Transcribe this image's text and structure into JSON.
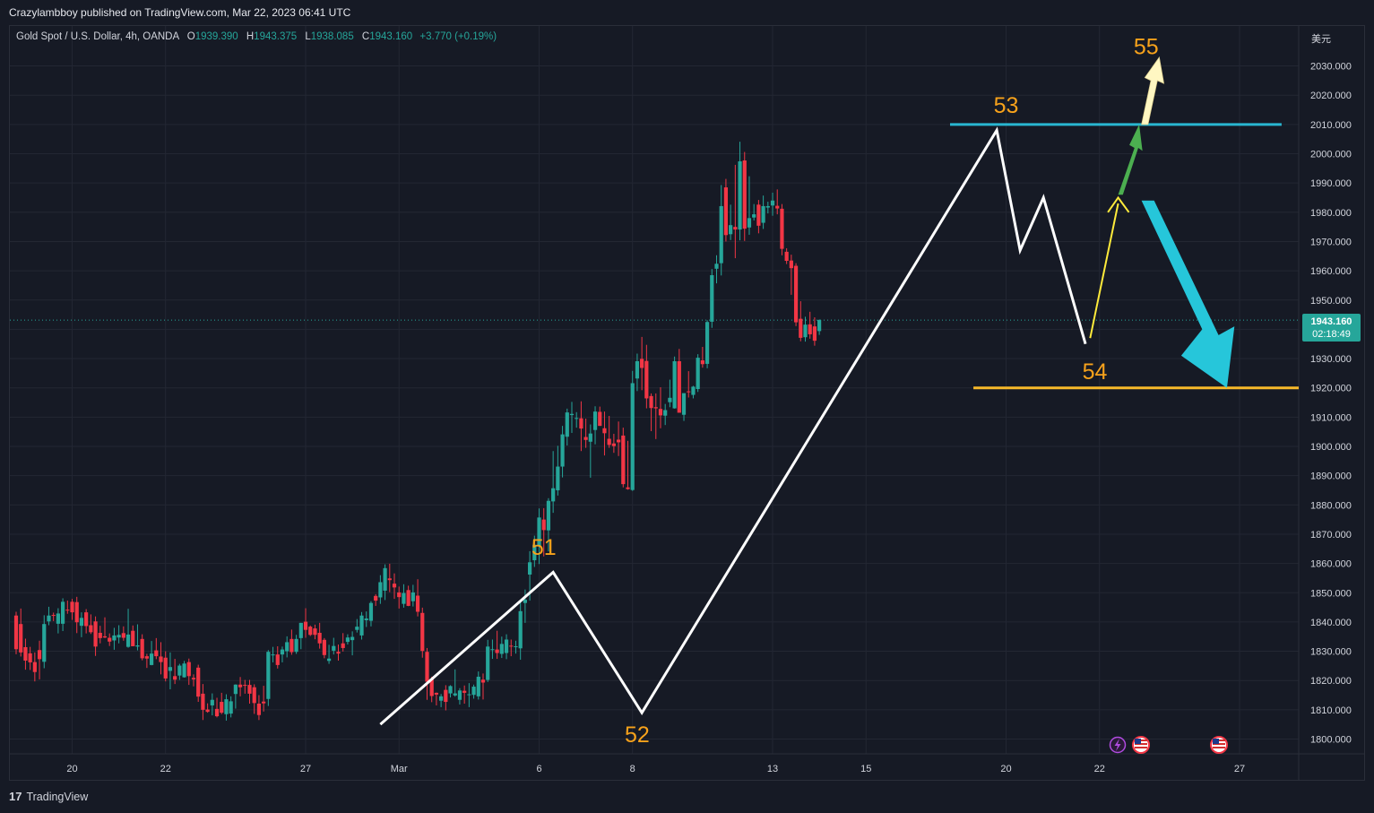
{
  "publisher_line": "Crazylambboy published on TradingView.com, Mar 22, 2023 06:41 UTC",
  "symbol": {
    "name": "Gold Spot / U.S. Dollar, 4h, OANDA",
    "o_label": "O",
    "o_value": "1939.390",
    "h_label": "H",
    "h_value": "1943.375",
    "l_label": "L",
    "l_value": "1938.085",
    "c_label": "C",
    "c_value": "1943.160",
    "change": "+3.770 (+0.19%)"
  },
  "currency": "美元",
  "last_price": {
    "price": "1943.160",
    "countdown": "02:18:49",
    "value": 1943.16
  },
  "footer": {
    "logo": "17",
    "brand": "TradingView"
  },
  "colors": {
    "up": "#26a69a",
    "down": "#f23645",
    "background": "#161a25",
    "grid": "#232733",
    "wave": "#ffffff",
    "label": "#f7a21b",
    "resistance": "#29b6d1",
    "support": "#f7b92a",
    "arrow_yellow": "#ffeb3b",
    "arrow_green": "#4caf50",
    "arrow_cream": "#fff7c2",
    "arrow_cyan": "#26c6da"
  },
  "icons": [
    "lightning-icon",
    "us-flag-icon",
    "us-flag-icon"
  ],
  "chart_data": {
    "type": "candlestick",
    "title": "Gold Spot / U.S. Dollar",
    "timeframe": "4h",
    "ylim": [
      1795,
      2040
    ],
    "y_ticks": [
      1800,
      1810,
      1820,
      1830,
      1840,
      1850,
      1860,
      1870,
      1880,
      1890,
      1900,
      1910,
      1920,
      1930,
      1940,
      1950,
      1960,
      1970,
      1980,
      1990,
      2000,
      2010,
      2020,
      2030
    ],
    "y_tick_labels": [
      "1800.000",
      "1810.000",
      "1820.000",
      "1830.000",
      "1840.000",
      "1850.000",
      "1860.000",
      "1870.000",
      "1880.000",
      "1890.000",
      "1900.000",
      "1910.000",
      "1920.000",
      "1930.000",
      "1940.000",
      "1950.000",
      "1960.000",
      "1970.000",
      "1980.000",
      "1990.000",
      "2000.000",
      "2010.000",
      "2020.000",
      "2030.000"
    ],
    "x_ticks": [
      {
        "label": "20",
        "bar": 12
      },
      {
        "label": "22",
        "bar": 32
      },
      {
        "label": "27",
        "bar": 62
      },
      {
        "label": "Mar",
        "bar": 82
      },
      {
        "label": "6",
        "bar": 112
      },
      {
        "label": "8",
        "bar": 132
      },
      {
        "label": "13",
        "bar": 162
      },
      {
        "label": "15",
        "bar": 182
      },
      {
        "label": "20",
        "bar": 212
      },
      {
        "label": "22",
        "bar": 232
      },
      {
        "label": "27",
        "bar": 262
      }
    ],
    "candles": [
      [
        1842.2,
        1843.5,
        1829,
        1830.7
      ],
      [
        1839.3,
        1844.6,
        1828.2,
        1829.6
      ],
      [
        1831.4,
        1834.3,
        1823.7,
        1826.8
      ],
      [
        1829.3,
        1831.5,
        1823.6,
        1826.2
      ],
      [
        1826.3,
        1829.6,
        1819.7,
        1822.9
      ],
      [
        1830.4,
        1833.6,
        1820.4,
        1827.3
      ],
      [
        1826.4,
        1842.3,
        1824.2,
        1839.3
      ],
      [
        1840.2,
        1845.2,
        1838.9,
        1842.2
      ],
      [
        1842.4,
        1843.2,
        1840.3,
        1842.1
      ],
      [
        1839.4,
        1844.7,
        1836.1,
        1842.9
      ],
      [
        1839.4,
        1848.1,
        1836.9,
        1846.9
      ],
      [
        1844.2,
        1847.3,
        1842.8,
        1843.9
      ],
      [
        1846.9,
        1847.9,
        1840.7,
        1843.3
      ],
      [
        1846.8,
        1848.6,
        1836.2,
        1839.9
      ],
      [
        1838.7,
        1843.3,
        1834.8,
        1841.4
      ],
      [
        1843.3,
        1844.4,
        1836.1,
        1838.6
      ],
      [
        1838.9,
        1842.6,
        1835.9,
        1836.5
      ],
      [
        1840.2,
        1841.9,
        1828.4,
        1831.6
      ],
      [
        1836.3,
        1838.7,
        1832.7,
        1834.5
      ],
      [
        1835.1,
        1841.6,
        1834.5,
        1834.7
      ],
      [
        1834.6,
        1836.1,
        1831.8,
        1833.3
      ],
      [
        1833.7,
        1838,
        1830.5,
        1835.4
      ],
      [
        1834.7,
        1838.9,
        1832.7,
        1835.6
      ],
      [
        1836.2,
        1838.5,
        1833.6,
        1834.6
      ],
      [
        1831.5,
        1844.5,
        1831.2,
        1835.7
      ],
      [
        1837,
        1838.8,
        1832.1,
        1831.7
      ],
      [
        1831.6,
        1839.2,
        1830.3,
        1832
      ],
      [
        1834.2,
        1835.8,
        1826.9,
        1827.6
      ],
      [
        1828.3,
        1829.1,
        1824.3,
        1827.5
      ],
      [
        1825.3,
        1833.5,
        1825.2,
        1829.2
      ],
      [
        1830.3,
        1834.5,
        1827.3,
        1828.3
      ],
      [
        1828.2,
        1833.1,
        1822.1,
        1826.3
      ],
      [
        1827.8,
        1830,
        1819.7,
        1820.7
      ],
      [
        1823.3,
        1829.6,
        1817,
        1824.6
      ],
      [
        1821.5,
        1827.4,
        1818.8,
        1820.3
      ],
      [
        1821.7,
        1825.7,
        1820.2,
        1825.1
      ],
      [
        1821.1,
        1826.7,
        1821,
        1825.8
      ],
      [
        1826.3,
        1827.5,
        1818.5,
        1821.5
      ],
      [
        1820.9,
        1822.1,
        1818,
        1820.4
      ],
      [
        1824.4,
        1825.4,
        1812.7,
        1814.5
      ],
      [
        1815.5,
        1818.8,
        1806.5,
        1810
      ],
      [
        1810.1,
        1812.2,
        1809,
        1809.3
      ],
      [
        1811.5,
        1815.6,
        1808.1,
        1813.4
      ],
      [
        1810.3,
        1814.1,
        1807.4,
        1807.8
      ],
      [
        1812.7,
        1815.8,
        1808.5,
        1809
      ],
      [
        1808.5,
        1815.3,
        1806.3,
        1813.6
      ],
      [
        1808.7,
        1814.6,
        1807.4,
        1812.9
      ],
      [
        1815.4,
        1818.7,
        1810.4,
        1818.6
      ],
      [
        1818.6,
        1821.2,
        1814.6,
        1817.7
      ],
      [
        1818.5,
        1820.2,
        1815.5,
        1818.4
      ],
      [
        1818.5,
        1820.2,
        1812.1,
        1815.5
      ],
      [
        1817.7,
        1818.7,
        1808.6,
        1812.3
      ],
      [
        1812.1,
        1815,
        1806.5,
        1808.2
      ],
      [
        1812.8,
        1818.2,
        1809.4,
        1812.2
      ],
      [
        1813.7,
        1830.4,
        1811.3,
        1829.8
      ],
      [
        1828.6,
        1831.5,
        1826.2,
        1828.9
      ],
      [
        1828.9,
        1831.7,
        1824.1,
        1825.3
      ],
      [
        1828.9,
        1831.6,
        1826.2,
        1830.6
      ],
      [
        1830,
        1835.1,
        1827.9,
        1833.1
      ],
      [
        1834.2,
        1837.4,
        1828.8,
        1829.7
      ],
      [
        1829.8,
        1835.6,
        1829.1,
        1834.2
      ],
      [
        1834.5,
        1839.7,
        1830.7,
        1839.7
      ],
      [
        1840.1,
        1844.7,
        1834.6,
        1837.3
      ],
      [
        1838.4,
        1838.8,
        1835.2,
        1835.6
      ],
      [
        1837.8,
        1839.1,
        1834.1,
        1835.6
      ],
      [
        1836.3,
        1839.7,
        1830.9,
        1832.7
      ],
      [
        1833.9,
        1834.5,
        1827.6,
        1828.7
      ],
      [
        1826.7,
        1832.2,
        1825.7,
        1827.5
      ],
      [
        1830.2,
        1834.6,
        1828.9,
        1831.8
      ],
      [
        1829.8,
        1832.3,
        1826.8,
        1829.2
      ],
      [
        1832.7,
        1836.2,
        1829.9,
        1831.1
      ],
      [
        1833.2,
        1835.8,
        1832.3,
        1834.7
      ],
      [
        1833.8,
        1836.8,
        1828.6,
        1834.9
      ],
      [
        1837.3,
        1841,
        1836.4,
        1838.4
      ],
      [
        1835.4,
        1843.4,
        1834,
        1842.2
      ],
      [
        1840.6,
        1843.6,
        1838.3,
        1841.2
      ],
      [
        1840.4,
        1847.1,
        1838.5,
        1846.5
      ],
      [
        1848.9,
        1849.5,
        1845.5,
        1847.3
      ],
      [
        1848.4,
        1856,
        1846.2,
        1853.6
      ],
      [
        1850.7,
        1859.7,
        1847.5,
        1858.4
      ],
      [
        1854.9,
        1859.9,
        1850.2,
        1854.3
      ],
      [
        1853.1,
        1856.6,
        1847.9,
        1851.8
      ],
      [
        1850.1,
        1852.1,
        1844.6,
        1848.5
      ],
      [
        1846.2,
        1852.9,
        1844.9,
        1849.9
      ],
      [
        1850.9,
        1852.4,
        1845.4,
        1845.5
      ],
      [
        1847.1,
        1852.7,
        1845.3,
        1850.1
      ],
      [
        1849,
        1854.6,
        1841.9,
        1843.5
      ],
      [
        1843.1,
        1844.9,
        1827.8,
        1830.1
      ],
      [
        1829.8,
        1831.1,
        1813.4,
        1819.6
      ],
      [
        1820.6,
        1821.3,
        1812.6,
        1814.7
      ],
      [
        1815.8,
        1815.9,
        1811.5,
        1815.2
      ],
      [
        1813.1,
        1815.4,
        1810.9,
        1814.6
      ],
      [
        1816.8,
        1818.4,
        1809.8,
        1812.7
      ],
      [
        1815.6,
        1818.4,
        1814.2,
        1818.1
      ],
      [
        1814.9,
        1823.8,
        1814.5,
        1815.6
      ],
      [
        1813.4,
        1817.4,
        1811.8,
        1816.6
      ],
      [
        1816.5,
        1818.3,
        1812.1,
        1815.8
      ],
      [
        1815.1,
        1819.1,
        1810.9,
        1815.3
      ],
      [
        1815.1,
        1818.6,
        1813.8,
        1817.9
      ],
      [
        1814.6,
        1823.1,
        1813.5,
        1821.3
      ],
      [
        1820.3,
        1822.4,
        1813.5,
        1819.3
      ],
      [
        1820.2,
        1833.9,
        1819.5,
        1831.6
      ],
      [
        1830.5,
        1834,
        1827.4,
        1830.7
      ],
      [
        1830.6,
        1837,
        1827.4,
        1829.4
      ],
      [
        1829.1,
        1835,
        1827.7,
        1832.5
      ],
      [
        1829.4,
        1835.8,
        1827.3,
        1834
      ],
      [
        1831.9,
        1834,
        1828.3,
        1831.8
      ],
      [
        1831.5,
        1833.6,
        1829.2,
        1831.7
      ],
      [
        1831,
        1847,
        1827.1,
        1843.7
      ],
      [
        1846.5,
        1851.1,
        1839.7,
        1847.6
      ],
      [
        1856.2,
        1864.2,
        1847.3,
        1860.4
      ],
      [
        1861.1,
        1869.5,
        1858.8,
        1866.4
      ],
      [
        1865.8,
        1878.8,
        1859.8,
        1875.7
      ],
      [
        1875,
        1878.9,
        1862.4,
        1871.4
      ],
      [
        1871.3,
        1882.3,
        1864.1,
        1881.4
      ],
      [
        1881.2,
        1898.4,
        1877.3,
        1885.7
      ],
      [
        1885,
        1900.2,
        1883.2,
        1893.1
      ],
      [
        1893.1,
        1907,
        1889.4,
        1904.1
      ],
      [
        1903.3,
        1912.9,
        1900.3,
        1911.6
      ],
      [
        1910.7,
        1915.2,
        1904.6,
        1911.1
      ],
      [
        1909.4,
        1911.7,
        1906.4,
        1909.7
      ],
      [
        1909.6,
        1915.4,
        1898.4,
        1906.1
      ],
      [
        1903.2,
        1909.5,
        1899.5,
        1902.2
      ],
      [
        1901.6,
        1907.5,
        1889.3,
        1904.4
      ],
      [
        1905.6,
        1913.7,
        1900.7,
        1911.9
      ],
      [
        1911.8,
        1913.6,
        1907,
        1907
      ],
      [
        1906.2,
        1911.9,
        1896.9,
        1904.5
      ],
      [
        1902.6,
        1910.4,
        1899.5,
        1900.5
      ],
      [
        1901,
        1904.3,
        1897.8,
        1900.1
      ],
      [
        1902.3,
        1908.5,
        1896.7,
        1901.4
      ],
      [
        1903.7,
        1906.4,
        1886,
        1887.1
      ],
      [
        1886,
        1901.9,
        1885.2,
        1885.4
      ],
      [
        1885.1,
        1925.8,
        1884.8,
        1921.6
      ],
      [
        1923.2,
        1931.7,
        1918.9,
        1929.1
      ],
      [
        1929.9,
        1937.4,
        1919.2,
        1926.8
      ],
      [
        1929.2,
        1934.7,
        1913,
        1916.4
      ],
      [
        1917.2,
        1918.1,
        1905.2,
        1913.1
      ],
      [
        1913.4,
        1918.1,
        1902.5,
        1913
      ],
      [
        1912.8,
        1920.2,
        1906.2,
        1910.6
      ],
      [
        1910.5,
        1914.5,
        1907.3,
        1912.4
      ],
      [
        1915.1,
        1922.8,
        1913.4,
        1916.6
      ],
      [
        1913,
        1930.7,
        1912.9,
        1929.1
      ],
      [
        1929.1,
        1933.3,
        1912,
        1911.5
      ],
      [
        1910.8,
        1917.7,
        1908.7,
        1918.2
      ],
      [
        1918.8,
        1925.7,
        1916.7,
        1918.6
      ],
      [
        1917.6,
        1920.7,
        1916.4,
        1920.4
      ],
      [
        1919.6,
        1931.5,
        1918.6,
        1930.3
      ],
      [
        1929.4,
        1934,
        1926.9,
        1928.1
      ],
      [
        1928.2,
        1943.1,
        1926.7,
        1942.5
      ],
      [
        1942.6,
        1960.6,
        1940.5,
        1958.5
      ],
      [
        1960.7,
        1965.3,
        1955.7,
        1962.4
      ],
      [
        1962.6,
        1989.3,
        1958.4,
        1982.1
      ],
      [
        1988.5,
        1991.4,
        1970,
        1972.2
      ],
      [
        1972.5,
        1982.6,
        1970.5,
        1975.6
      ],
      [
        1975,
        1996.2,
        1964.3,
        1974.1
      ],
      [
        1974.1,
        2004.1,
        1970.4,
        1997.4
      ],
      [
        1997.7,
        2000.6,
        1970.2,
        1974.4
      ],
      [
        1974.8,
        1992.3,
        1972.3,
        1978
      ],
      [
        1978.2,
        1982.8,
        1977.2,
        1979.3
      ],
      [
        1982.6,
        1984.2,
        1972.8,
        1975.4
      ],
      [
        1976.4,
        1985.7,
        1974.3,
        1982.1
      ],
      [
        1981.6,
        1983.6,
        1979.6,
        1982.1
      ],
      [
        1982.3,
        1986.7,
        1978.8,
        1984
      ],
      [
        1982.2,
        1987.8,
        1979.3,
        1981.3
      ],
      [
        1981.2,
        1982.8,
        1965.3,
        1967.5
      ],
      [
        1966.5,
        1967.7,
        1962.3,
        1963.4
      ],
      [
        1963.5,
        1965.5,
        1951.8,
        1960.9
      ],
      [
        1961.7,
        1962.6,
        1941.1,
        1942.4
      ],
      [
        1943.6,
        1949.6,
        1935.9,
        1937.1
      ],
      [
        1937.3,
        1944.3,
        1935.8,
        1941.6
      ],
      [
        1941.7,
        1946,
        1936.8,
        1938.3
      ],
      [
        1941,
        1944.1,
        1934.4,
        1936.1
      ],
      [
        1939.4,
        1943.4,
        1938.1,
        1943.2
      ]
    ],
    "wave_points": [
      [
        78,
        1805
      ],
      [
        115,
        1857
      ],
      [
        134,
        1809
      ],
      [
        210,
        2008
      ],
      [
        215,
        1967
      ],
      [
        220,
        1985
      ],
      [
        229,
        1935
      ]
    ],
    "wave_labels": [
      {
        "text": "51",
        "bar": 113,
        "price": 1863
      },
      {
        "text": "52",
        "bar": 133,
        "price": 1799
      },
      {
        "text": "53",
        "bar": 212,
        "price": 2014
      },
      {
        "text": "54",
        "bar": 231,
        "price": 1923
      },
      {
        "text": "55",
        "bar": 242,
        "price": 2034
      }
    ],
    "levels": [
      {
        "name": "resistance",
        "price": 2010,
        "bar_from": 200,
        "bar_to": 271
      },
      {
        "name": "support",
        "price": 1920,
        "bar_from": 205,
        "bar_to": 281
      }
    ]
  }
}
